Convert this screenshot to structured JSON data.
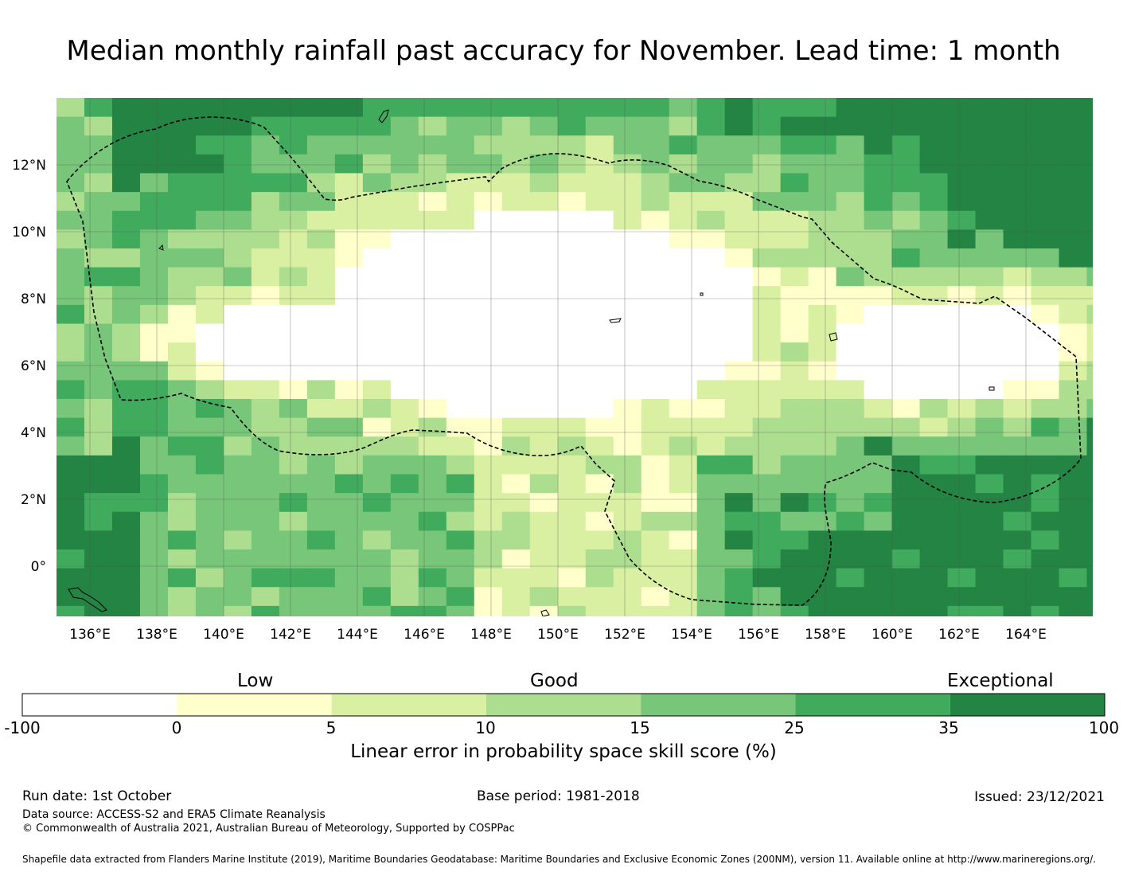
{
  "title": "Median monthly rainfall past accuracy for November. Lead time: 1 month",
  "map": {
    "lat_labels": [
      "12°N",
      "10°N",
      "8°N",
      "6°N",
      "4°N",
      "2°N",
      "0°"
    ],
    "lon_labels": [
      "136°E",
      "138°E",
      "140°E",
      "142°E",
      "144°E",
      "146°E",
      "148°E",
      "150°E",
      "152°E",
      "154°E",
      "156°E",
      "158°E",
      "160°E",
      "162°E",
      "164°E"
    ],
    "region": "Federated States of Micronesia EEZ (dashed boundary)"
  },
  "colorbar": {
    "category_labels": [
      "Low",
      "Good",
      "Exceptional"
    ],
    "ticks": [
      "-100",
      "0",
      "5",
      "10",
      "15",
      "25",
      "35",
      "100"
    ],
    "colors": [
      "#ffffff",
      "#ffffcc",
      "#d9f0a3",
      "#addd8e",
      "#78c679",
      "#41ab5d",
      "#238443"
    ],
    "title": "Linear error in probability space skill score (%)"
  },
  "footer": {
    "run_date": "Run date: 1st October",
    "base_period": "Base period: 1981-2018",
    "issued": "Issued: 23/12/2021",
    "data_source": "Data source: ACCESS-S2 and ERA5 Climate Reanalysis",
    "copyright": "© Commonwealth of Australia 2021, Australian Bureau of Meteorology, Supported by COSPPac",
    "shapefile": "Shapefile data extracted from Flanders Marine Institute (2019), Maritime Boundaries Geodatabase: Maritime Boundaries and Exclusive Economic Zones (200NM), version 11. Available online at http://www.marineregions.org/."
  }
}
